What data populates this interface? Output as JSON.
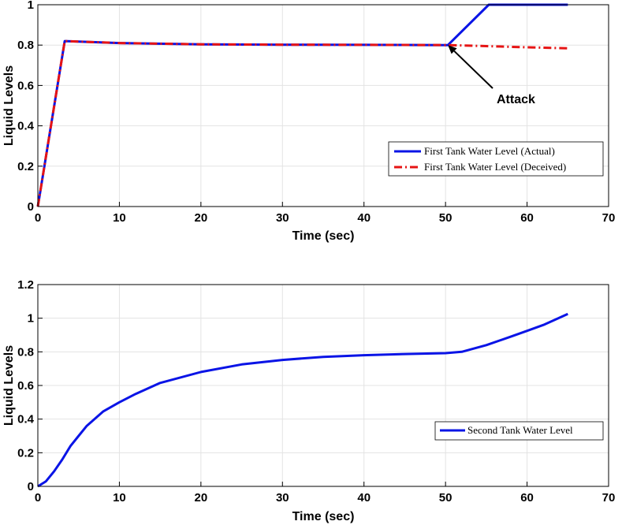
{
  "colors": {
    "actual": "#0a14e6",
    "deceived": "#e61414",
    "second": "#0a14e6",
    "grid": "#e3e3e3",
    "axis": "#000000"
  },
  "chart_data": [
    {
      "type": "line",
      "xlabel": "Time (sec)",
      "ylabel": "Liquid Levels",
      "xlim": [
        0,
        70
      ],
      "ylim": [
        0,
        1
      ],
      "xticks": [
        0,
        10,
        20,
        30,
        40,
        50,
        60,
        70
      ],
      "yticks": [
        0,
        0.2,
        0.4,
        0.6,
        0.8,
        1
      ],
      "ytick_labels": [
        "0",
        "0.2",
        "0.4",
        "0.6",
        "0.8",
        "1"
      ],
      "grid": true,
      "legend_position": "right",
      "series": [
        {
          "name": "First Tank Water Level (Actual)",
          "style": "solid",
          "x": [
            0,
            3.3,
            10,
            20,
            30,
            40,
            50.3,
            55.3,
            65
          ],
          "y": [
            0,
            0.82,
            0.81,
            0.804,
            0.802,
            0.801,
            0.8,
            1.0,
            1.0
          ]
        },
        {
          "name": "First Tank Water Level (Deceived)",
          "style": "dashdot",
          "x": [
            0,
            3.3,
            10,
            20,
            30,
            40,
            50.3,
            55,
            60,
            65
          ],
          "y": [
            0,
            0.82,
            0.81,
            0.804,
            0.802,
            0.801,
            0.8,
            0.795,
            0.789,
            0.784
          ]
        }
      ],
      "annotations": [
        {
          "text": "Attack",
          "x": 58.7,
          "y": 0.53,
          "arrow_to_x": 50.3,
          "arrow_to_y": 0.8
        }
      ]
    },
    {
      "type": "line",
      "xlabel": "Time (sec)",
      "ylabel": "Liquid Levels",
      "xlim": [
        0,
        70
      ],
      "ylim": [
        0,
        1.2
      ],
      "xticks": [
        0,
        10,
        20,
        30,
        40,
        50,
        60,
        70
      ],
      "yticks": [
        0,
        0.2,
        0.4,
        0.6,
        0.8,
        1,
        1.2
      ],
      "ytick_labels": [
        "0",
        "0.2",
        "0.4",
        "0.6",
        "0.8",
        "1",
        "1.2"
      ],
      "grid": true,
      "legend_position": "right",
      "series": [
        {
          "name": "Second Tank Water Level",
          "style": "solid",
          "x": [
            0,
            1,
            2,
            3,
            4,
            5,
            6,
            8,
            10,
            12,
            15,
            20,
            25,
            30,
            35,
            40,
            45,
            50,
            52,
            55,
            58,
            60,
            62,
            65
          ],
          "y": [
            0,
            0.03,
            0.09,
            0.16,
            0.24,
            0.3,
            0.36,
            0.445,
            0.5,
            0.55,
            0.615,
            0.68,
            0.725,
            0.752,
            0.77,
            0.78,
            0.787,
            0.792,
            0.8,
            0.84,
            0.89,
            0.925,
            0.96,
            1.025
          ]
        }
      ]
    }
  ]
}
